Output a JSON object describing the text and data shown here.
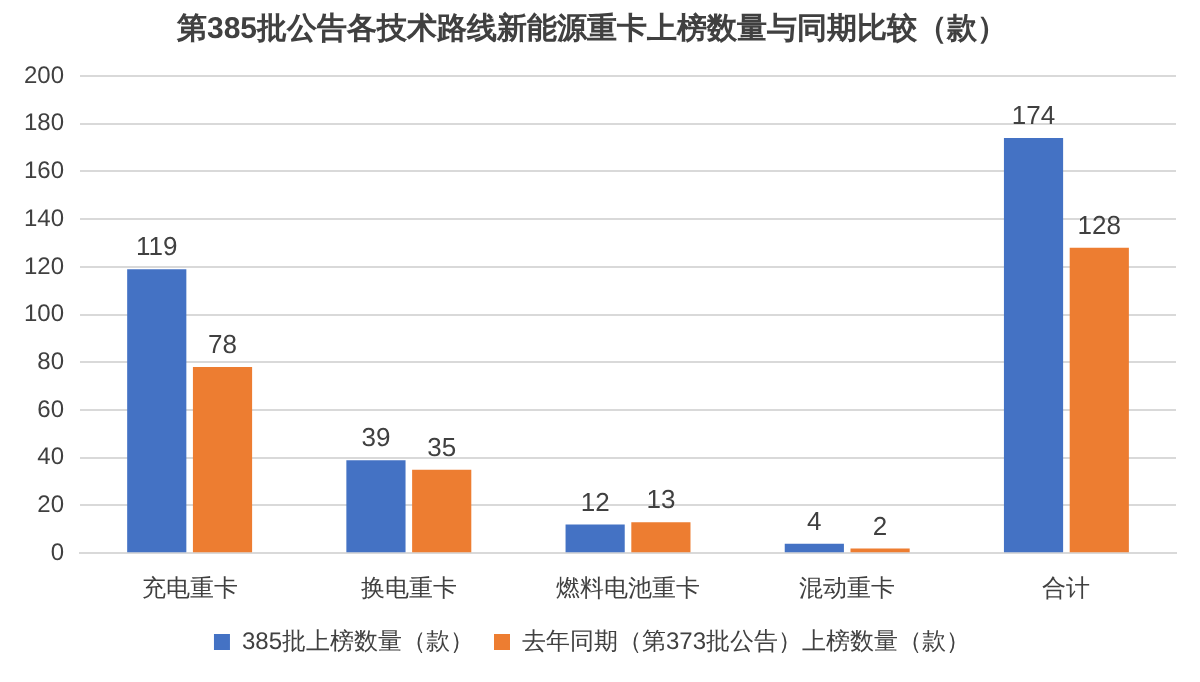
{
  "chart_data": {
    "type": "bar",
    "title": "第385批公告各技术路线新能源重卡上榜数量与同期比较（款）",
    "categories": [
      "充电重卡",
      "换电重卡",
      "燃料电池重卡",
      "混动重卡",
      "合计"
    ],
    "series": [
      {
        "name": "385批上榜数量（款）",
        "color": "#4472c4",
        "values": [
          119,
          39,
          12,
          4,
          174
        ]
      },
      {
        "name": "去年同期（第373批公告）上榜数量（款）",
        "color": "#ed7d31",
        "values": [
          78,
          35,
          13,
          2,
          128
        ]
      }
    ],
    "ylim": [
      0,
      200
    ],
    "yticks": [
      0,
      20,
      40,
      60,
      80,
      100,
      120,
      140,
      160,
      180,
      200
    ],
    "grid": "y",
    "legend": "bottom",
    "data_labels": true
  }
}
